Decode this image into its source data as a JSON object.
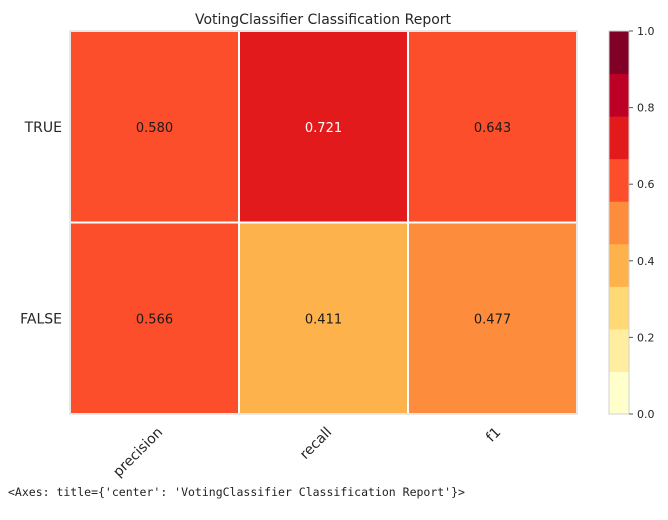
{
  "chart_data": {
    "type": "heatmap",
    "title": "VotingClassifier Classification Report",
    "rows": [
      "TRUE",
      "FALSE"
    ],
    "columns": [
      "precision",
      "recall",
      "f1"
    ],
    "values": [
      [
        0.58,
        0.721,
        0.643
      ],
      [
        0.566,
        0.411,
        0.477
      ]
    ],
    "value_labels": [
      [
        "0.580",
        "0.721",
        "0.643"
      ],
      [
        "0.566",
        "0.411",
        "0.477"
      ]
    ],
    "colorbar": {
      "range": [
        0,
        1
      ],
      "ticks": [
        "0.0",
        "0.2",
        "0.4",
        "0.6",
        "0.8",
        "1.0"
      ],
      "colors": [
        "#ffffcc",
        "#ffeda0",
        "#fed976",
        "#feb24c",
        "#fd8d3c",
        "#fc4e2a",
        "#e31a1c",
        "#bd0026",
        "#800026"
      ]
    },
    "colormap": "YlOrRd"
  },
  "output_text": "<Axes: title={'center': 'VotingClassifier Classification Report'}>"
}
